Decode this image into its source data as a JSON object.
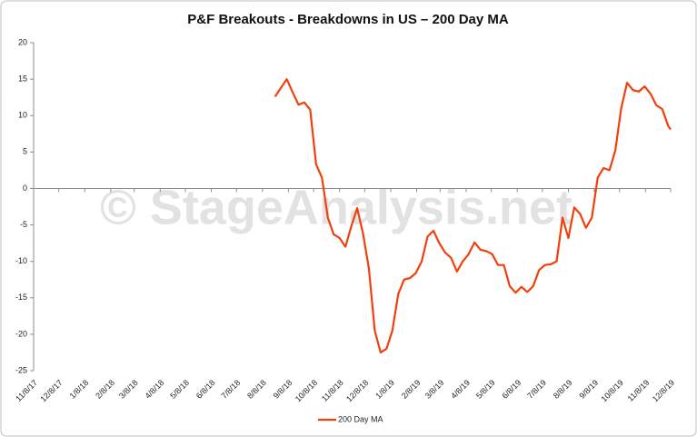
{
  "chart_data": {
    "type": "line",
    "title": "P&F Breakouts - Breakdowns in US – 200 Day MA",
    "watermark": "© StageAnalysis.net",
    "x": [
      "8/23/18",
      "8/30/18",
      "9/6/18",
      "9/13/18",
      "9/20/18",
      "9/27/18",
      "10/4/18",
      "10/11/18",
      "10/18/18",
      "10/25/18",
      "11/1/18",
      "11/8/18",
      "11/15/18",
      "11/22/18",
      "11/29/18",
      "12/6/18",
      "12/13/18",
      "12/20/18",
      "12/27/18",
      "1/3/19",
      "1/10/19",
      "1/17/19",
      "1/24/19",
      "1/31/19",
      "2/7/19",
      "2/14/19",
      "2/21/19",
      "2/28/19",
      "3/7/19",
      "3/14/19",
      "3/21/19",
      "3/28/19",
      "4/4/19",
      "4/11/19",
      "4/18/19",
      "4/25/19",
      "5/2/19",
      "5/9/19",
      "5/16/19",
      "5/23/19",
      "5/30/19",
      "6/6/19",
      "6/13/19",
      "6/20/19",
      "6/27/19",
      "7/4/19",
      "7/11/19",
      "7/18/19",
      "7/25/19",
      "8/1/19",
      "8/8/19",
      "8/15/19",
      "8/22/19",
      "8/29/19",
      "9/5/19",
      "9/12/19",
      "9/19/19",
      "9/26/19",
      "10/3/19",
      "10/10/19",
      "10/17/19",
      "10/24/19",
      "10/31/19",
      "11/7/19",
      "11/14/19",
      "11/21/19",
      "11/28/19",
      "12/5/19",
      "12/8/19"
    ],
    "series": [
      {
        "name": "200 Day MA",
        "color": "#f2400d",
        "values": [
          12.6,
          13.8,
          15.0,
          13.2,
          11.5,
          11.8,
          10.8,
          3.3,
          1.5,
          -4.0,
          -6.3,
          -6.8,
          -8.0,
          -5.2,
          -2.7,
          -6.2,
          -11,
          -19.5,
          -22.5,
          -22.0,
          -19.5,
          -14.5,
          -12.5,
          -12.3,
          -11.6,
          -10.0,
          -6.6,
          -5.8,
          -7.5,
          -8.8,
          -9.5,
          -11.4,
          -10.0,
          -9.0,
          -7.4,
          -8.4,
          -8.6,
          -9.0,
          -10.5,
          -10.5,
          -13.4,
          -14.3,
          -13.5,
          -14.2,
          -13.4,
          -11.2,
          -10.5,
          -10.4,
          -10.0,
          -4.0,
          -6.8,
          -2.6,
          -3.5,
          -5.4,
          -4.0,
          1.5,
          2.8,
          2.5,
          5.2,
          11.0,
          14.5,
          13.5,
          13.3,
          14.0,
          13.0,
          11.4,
          10.9,
          8.6,
          8.1
        ]
      }
    ],
    "xlim": [
      "11/8/17",
      "12/8/19"
    ],
    "xticks": [
      "11/8/17",
      "12/8/17",
      "1/8/18",
      "2/8/18",
      "3/8/18",
      "4/8/18",
      "5/8/18",
      "6/8/18",
      "7/8/18",
      "8/8/18",
      "9/8/18",
      "10/8/18",
      "11/8/18",
      "12/8/18",
      "1/8/19",
      "2/8/19",
      "3/8/19",
      "4/8/19",
      "5/8/19",
      "6/8/19",
      "7/8/19",
      "8/8/19",
      "9/8/19",
      "10/8/19",
      "11/8/19",
      "12/8/19"
    ],
    "ylim": [
      -25,
      20
    ],
    "yticks": [
      -25,
      -20,
      -15,
      -10,
      -5,
      0,
      5,
      10,
      15,
      20
    ],
    "legend": "bottom"
  }
}
